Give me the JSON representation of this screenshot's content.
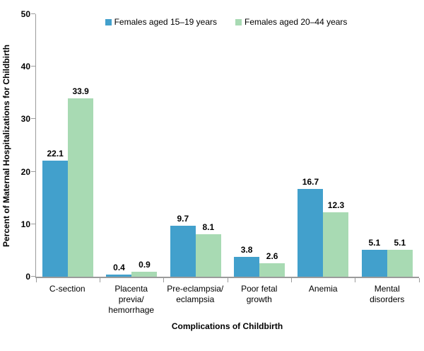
{
  "chart_data": {
    "type": "bar",
    "title": "",
    "xlabel": "Complications of Childbirth",
    "ylabel": "Percent of Maternal Hospitalizations for Childbirth",
    "ylim": [
      0,
      50
    ],
    "yticks": [
      0,
      10,
      20,
      30,
      40,
      50
    ],
    "grid": false,
    "legend_position": "top-center",
    "categories": [
      "C-section",
      "Placenta\nprevia/\nhemorrhage",
      "Pre-eclampsia/\neclampsia",
      "Poor fetal\ngrowth",
      "Anemia",
      "Mental\ndisorders"
    ],
    "series": [
      {
        "name": "Females aged 15–19 years",
        "color": "#42A0CC",
        "values": [
          22.1,
          0.4,
          9.7,
          3.8,
          16.7,
          5.1
        ]
      },
      {
        "name": "Females aged 20–44 years",
        "color": "#A8DAB3",
        "values": [
          33.9,
          0.9,
          8.1,
          2.6,
          12.3,
          5.1
        ]
      }
    ],
    "axis_color": "#9B9B9B",
    "value_labels_shown": true
  }
}
